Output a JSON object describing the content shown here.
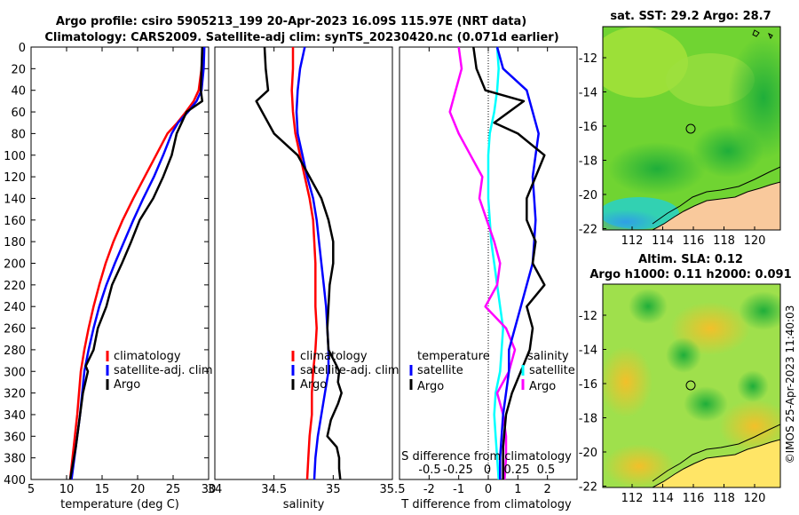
{
  "header": {
    "title_line1": "Argo profile: csiro 5905213_199 20-Apr-2023 16.09S 115.97E (NRT data)",
    "title_line2": "Climatology: CARS2009. Satellite-adj clim: synTS_20230420.nc (0.071d earlier)"
  },
  "colors": {
    "climatology": "#ff0000",
    "satellite": "#0000ff",
    "argo": "#000000",
    "t_diff": "#ff00ff",
    "s_diff": "#00ffff",
    "land": "#f9c99c"
  },
  "credit": "©IMOS 25-Apr-2023 11:40:03",
  "chart_data": [
    {
      "type": "line",
      "id": "temperature",
      "xlabel": "temperature (deg C)",
      "xlim": [
        5,
        30
      ],
      "xticks": [
        "5",
        "10",
        "15",
        "20",
        "25",
        "30"
      ],
      "xtick_values": [
        5,
        10,
        15,
        20,
        25,
        30
      ],
      "ylim": [
        0,
        400
      ],
      "yticks": [
        "0",
        "20",
        "40",
        "60",
        "80",
        "100",
        "120",
        "140",
        "160",
        "180",
        "200",
        "220",
        "240",
        "260",
        "280",
        "300",
        "320",
        "340",
        "360",
        "380",
        "400"
      ],
      "legend": [
        "climatology",
        "satellite-adj. clim",
        "Argo"
      ],
      "series": [
        {
          "name": "climatology",
          "color": "#ff0000",
          "x": [
            29.2,
            29.0,
            28.6,
            27.9,
            26.8,
            25.6,
            24.2,
            22.6,
            21.0,
            19.4,
            17.9,
            16.6,
            15.5,
            14.6,
            13.8,
            13.1,
            12.5,
            12.0,
            11.5,
            11.0,
            10.5
          ],
          "y": [
            0,
            20,
            40,
            50,
            60,
            70,
            80,
            100,
            120,
            140,
            160,
            180,
            200,
            220,
            240,
            260,
            280,
            300,
            340,
            370,
            400
          ]
        },
        {
          "name": "satellite-adj. clim",
          "color": "#0000ff",
          "x": [
            29.4,
            29.3,
            29.0,
            28.3,
            27.1,
            25.7,
            24.8,
            23.6,
            22.3,
            20.8,
            19.4,
            18.1,
            16.8,
            15.6,
            14.6,
            13.8,
            13.1,
            12.5,
            11.9,
            11.3,
            10.7
          ],
          "y": [
            0,
            20,
            40,
            50,
            60,
            70,
            80,
            100,
            120,
            140,
            160,
            180,
            200,
            220,
            240,
            260,
            280,
            300,
            340,
            370,
            400
          ]
        },
        {
          "name": "Argo",
          "color": "#000000",
          "x": [
            29.1,
            29.0,
            28.9,
            29.1,
            26.9,
            26.2,
            25.5,
            24.8,
            23.6,
            22.2,
            20.3,
            19.1,
            17.8,
            16.4,
            15.6,
            14.4,
            13.8,
            12.7,
            13.0,
            12.3,
            11.9,
            11.3,
            10.5
          ],
          "y": [
            0,
            20,
            40,
            50,
            60,
            70,
            80,
            100,
            120,
            140,
            160,
            180,
            200,
            220,
            240,
            260,
            280,
            295,
            300,
            320,
            340,
            370,
            400
          ]
        }
      ]
    },
    {
      "type": "line",
      "id": "salinity",
      "xlabel": "salinity",
      "xlim": [
        34,
        35.5
      ],
      "xticks": [
        "34",
        "34.5",
        "35",
        "35.5"
      ],
      "xtick_values": [
        34,
        34.5,
        35,
        35.5
      ],
      "ylim": [
        0,
        400
      ],
      "legend": [
        "climatology",
        "satellite-adj. clim",
        "Argo"
      ],
      "series": [
        {
          "name": "climatology",
          "color": "#ff0000",
          "x": [
            34.66,
            34.66,
            34.65,
            34.66,
            34.68,
            34.72,
            34.76,
            34.8,
            34.83,
            34.84,
            34.85,
            34.85,
            34.85,
            34.86,
            34.85,
            34.83,
            34.82,
            34.82,
            34.8,
            34.79,
            34.78
          ],
          "y": [
            0,
            20,
            40,
            60,
            80,
            100,
            120,
            140,
            160,
            180,
            200,
            220,
            240,
            260,
            280,
            300,
            320,
            340,
            360,
            380,
            400
          ]
        },
        {
          "name": "satellite-adj. clim",
          "color": "#0000ff",
          "x": [
            34.76,
            34.72,
            34.7,
            34.69,
            34.7,
            34.74,
            34.78,
            34.83,
            34.86,
            34.88,
            34.9,
            34.92,
            34.94,
            34.95,
            34.96,
            34.96,
            34.93,
            34.9,
            34.87,
            34.85,
            34.84
          ],
          "y": [
            0,
            20,
            40,
            60,
            80,
            100,
            120,
            140,
            160,
            180,
            200,
            220,
            240,
            260,
            280,
            300,
            320,
            340,
            360,
            380,
            400
          ]
        },
        {
          "name": "Argo",
          "color": "#000000",
          "x": [
            34.42,
            34.43,
            34.45,
            34.35,
            34.4,
            34.5,
            34.7,
            34.8,
            34.9,
            34.96,
            35.0,
            35.0,
            34.97,
            34.96,
            34.95,
            34.96,
            35.03,
            35.05,
            35.04,
            35.07,
            35.04,
            34.98,
            34.95,
            35.03,
            35.05,
            35.05,
            35.06
          ],
          "y": [
            0,
            20,
            40,
            50,
            60,
            80,
            100,
            120,
            140,
            160,
            180,
            200,
            220,
            240,
            260,
            280,
            295,
            300,
            310,
            320,
            330,
            345,
            360,
            370,
            380,
            390,
            400
          ]
        }
      ]
    },
    {
      "type": "line",
      "id": "difference",
      "xlabel": "T difference from climatology",
      "xlabel_top": "S difference from climatology",
      "xlim": [
        -3,
        3
      ],
      "xticks": [
        "-2",
        "-1",
        "0",
        "1",
        "2"
      ],
      "xtick_values": [
        -2,
        -1,
        0,
        1,
        2
      ],
      "xticks_top": [
        "-0.5",
        "-0.25",
        "0",
        "0.25",
        "0.5"
      ],
      "legend_left_title": "temperature",
      "legend_right_title": "salinity",
      "legend_left": [
        "satellite",
        "Argo"
      ],
      "legend_right": [
        "satellite",
        "Argo"
      ],
      "series": [
        {
          "name": "T satellite",
          "color": "#00ffff",
          "x": [
            0.3,
            0.35,
            0.3,
            0.2,
            0.05,
            0.0,
            0.0,
            0.0,
            0.05,
            0.1,
            0.2,
            0.3,
            0.4,
            0.5,
            0.45,
            0.4,
            0.25,
            0.2,
            0.25,
            0.3,
            0.35
          ],
          "y": [
            0,
            20,
            40,
            60,
            80,
            100,
            120,
            140,
            160,
            180,
            200,
            220,
            240,
            260,
            280,
            300,
            320,
            340,
            360,
            380,
            400
          ]
        },
        {
          "name": "T Argo",
          "color": "#ff00ff",
          "x": [
            -1.0,
            -0.9,
            -1.1,
            -1.3,
            -1.0,
            -0.6,
            -0.2,
            -0.3,
            -0.05,
            0.2,
            0.4,
            0.3,
            -0.1,
            0.6,
            0.9,
            0.7,
            0.3,
            0.5,
            0.6,
            0.6,
            0.55
          ],
          "y": [
            0,
            20,
            40,
            60,
            80,
            100,
            120,
            140,
            160,
            180,
            200,
            220,
            240,
            260,
            280,
            300,
            320,
            340,
            360,
            380,
            400
          ]
        },
        {
          "name": "S satellite",
          "color": "#0000ff",
          "x": [
            0.3,
            0.5,
            1.3,
            1.5,
            1.7,
            1.6,
            1.5,
            1.55,
            1.6,
            1.55,
            1.5,
            1.3,
            1.1,
            0.9,
            0.7,
            0.7,
            0.6,
            0.5,
            0.45,
            0.4,
            0.4
          ],
          "y": [
            0,
            20,
            40,
            60,
            80,
            100,
            120,
            140,
            160,
            180,
            200,
            220,
            240,
            260,
            280,
            300,
            320,
            340,
            360,
            380,
            400
          ]
        },
        {
          "name": "S Argo",
          "color": "#000000",
          "x": [
            -0.5,
            -0.4,
            -0.1,
            1.2,
            0.2,
            1.0,
            1.9,
            1.6,
            1.3,
            1.3,
            1.6,
            1.5,
            1.9,
            1.3,
            1.5,
            1.4,
            1.1,
            0.8,
            0.6,
            0.5,
            0.5
          ],
          "y": [
            0,
            20,
            40,
            50,
            70,
            80,
            100,
            120,
            140,
            160,
            180,
            200,
            220,
            240,
            260,
            280,
            300,
            320,
            340,
            370,
            400
          ]
        }
      ]
    }
  ],
  "maps": [
    {
      "title": "sat. SST: 29.2 Argo: 28.7",
      "xticks": [
        "112",
        "114",
        "116",
        "118",
        "120"
      ],
      "yticks": [
        "-12",
        "-14",
        "-16",
        "-18",
        "-20",
        "-22"
      ]
    },
    {
      "title_line1": "Altim. SLA: 0.12",
      "title_line2": "Argo h1000: 0.11 h2000: 0.091",
      "xticks": [
        "112",
        "114",
        "116",
        "118",
        "120"
      ],
      "yticks": [
        "-12",
        "-14",
        "-16",
        "-18",
        "-20",
        "-22"
      ]
    }
  ]
}
